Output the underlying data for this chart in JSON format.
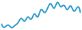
{
  "values": [
    1.5,
    0.5,
    1.2,
    0.3,
    1.0,
    2.0,
    3.5,
    2.5,
    4.0,
    3.2,
    5.0,
    4.0,
    6.5,
    5.5,
    7.0,
    8.5,
    7.0,
    9.0,
    7.5,
    8.0,
    6.5,
    7.8,
    6.0,
    7.2,
    5.5
  ],
  "line_color": "#2196c8",
  "line_width": 1.4,
  "background_color": "#ffffff"
}
